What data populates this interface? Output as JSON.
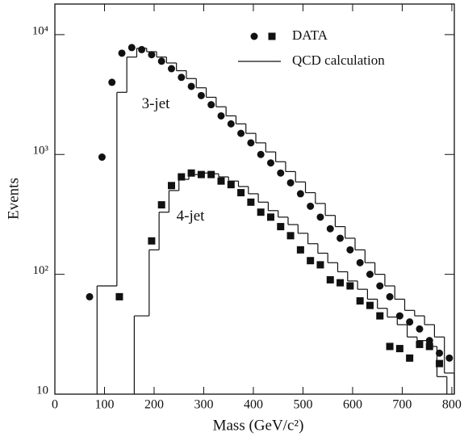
{
  "chart_data": {
    "type": "scatter",
    "xlabel": "Mass (GeV/c²)",
    "ylabel": "Events",
    "xlim": [
      0,
      805
    ],
    "ylim": [
      10,
      18000
    ],
    "log_y": true,
    "xticks": [
      0,
      100,
      200,
      300,
      400,
      500,
      600,
      700,
      800
    ],
    "yticks": [
      {
        "value": 10,
        "label": "10"
      },
      {
        "value": 100,
        "label": "10²"
      },
      {
        "value": 1000,
        "label": "10³"
      },
      {
        "value": 10000,
        "label": "10⁴"
      }
    ],
    "legend": "top right",
    "legend_data_label": "DATA",
    "legend_line_label": "QCD calculation",
    "annotations": [
      {
        "text": "3-jet",
        "x": 175,
        "y": 2600
      },
      {
        "text": "4-jet",
        "x": 245,
        "y": 300
      }
    ],
    "series": [
      {
        "marker": "circle",
        "color": "#111",
        "x": [
          70,
          95,
          115,
          135,
          155,
          175,
          195,
          215,
          235,
          255,
          275,
          295,
          315,
          335,
          355,
          375,
          395,
          415,
          435,
          455,
          475,
          495,
          515,
          535,
          555,
          575,
          595,
          615,
          635,
          655,
          675,
          695,
          715,
          735,
          755,
          775,
          795
        ],
        "values": [
          65,
          950,
          4000,
          7000,
          7800,
          7500,
          6800,
          6000,
          5200,
          4400,
          3700,
          3100,
          2600,
          2100,
          1800,
          1500,
          1250,
          1000,
          850,
          700,
          580,
          470,
          370,
          300,
          240,
          200,
          160,
          125,
          100,
          80,
          65,
          45,
          40,
          35,
          28,
          22,
          20
        ]
      },
      {
        "marker": "square",
        "color": "#111",
        "x": [
          130,
          195,
          215,
          235,
          255,
          275,
          295,
          315,
          335,
          355,
          375,
          395,
          415,
          435,
          455,
          475,
          495,
          515,
          535,
          555,
          575,
          595,
          615,
          635,
          655,
          675,
          695,
          715,
          735,
          755,
          775
        ],
        "values": [
          65,
          190,
          380,
          550,
          650,
          700,
          680,
          680,
          600,
          560,
          480,
          400,
          330,
          300,
          250,
          210,
          160,
          130,
          120,
          90,
          85,
          80,
          60,
          55,
          45,
          25,
          24,
          20,
          26,
          25,
          18
        ]
      }
    ],
    "histograms": [
      {
        "color": "#111",
        "bins": [
          85,
          125,
          145,
          165,
          185,
          205,
          225,
          245,
          265,
          285,
          305,
          325,
          345,
          365,
          385,
          405,
          425,
          445,
          465,
          485,
          505,
          525,
          545,
          565,
          585,
          605,
          625,
          645,
          665,
          685,
          705,
          725,
          745,
          765,
          785,
          805
        ],
        "values": [
          80,
          3300,
          6500,
          7700,
          7200,
          6500,
          5800,
          5000,
          4300,
          3600,
          3000,
          2500,
          2100,
          1800,
          1500,
          1250,
          1050,
          870,
          720,
          590,
          480,
          390,
          310,
          250,
          200,
          160,
          125,
          100,
          80,
          62,
          50,
          45,
          38,
          30,
          15
        ]
      },
      {
        "color": "#111",
        "bins": [
          160,
          190,
          210,
          230,
          250,
          270,
          290,
          310,
          330,
          350,
          370,
          390,
          410,
          430,
          450,
          470,
          490,
          510,
          530,
          550,
          570,
          590,
          610,
          630,
          650,
          670,
          690,
          710,
          730,
          750,
          770,
          790
        ],
        "values": [
          45,
          160,
          330,
          500,
          620,
          680,
          700,
          690,
          650,
          600,
          540,
          470,
          400,
          340,
          300,
          260,
          220,
          180,
          150,
          125,
          105,
          88,
          75,
          62,
          52,
          44,
          38,
          30,
          28,
          25,
          14
        ]
      }
    ]
  }
}
